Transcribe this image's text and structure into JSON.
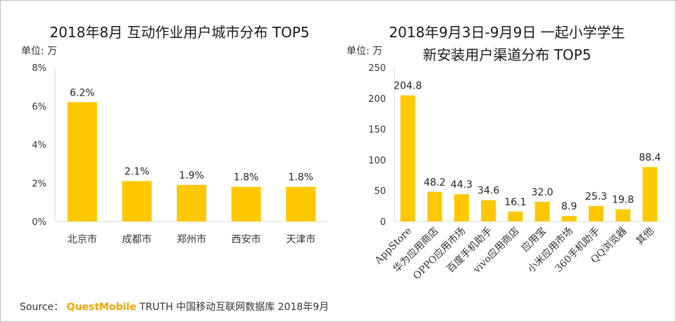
{
  "source": {
    "prefix": "Source：",
    "brand": "QuestMobile",
    "rest": "TRUTH 中国移动互联网数据库 2018年9月"
  },
  "colors": {
    "bar": "#FFC800",
    "axis": "#d9d9d9"
  },
  "chart_data": [
    {
      "type": "bar",
      "title": "2018年8月 互动作业用户城市分布 TOP5",
      "unit_label": "单位: 万",
      "categories": [
        "北京市",
        "成都市",
        "郑州市",
        "西安市",
        "天津市"
      ],
      "values": [
        6.2,
        2.1,
        1.9,
        1.8,
        1.8
      ],
      "value_labels": [
        "6.2%",
        "2.1%",
        "1.9%",
        "1.8%",
        "1.8%"
      ],
      "y_ticks": [
        "0%",
        "2%",
        "4%",
        "6%",
        "8%"
      ],
      "ylim": [
        0,
        8
      ],
      "grid": false
    },
    {
      "type": "bar",
      "title_lines": [
        "2018年9月3日-9月9日 一起小学学生",
        "新安装用户渠道分布 TOP5"
      ],
      "unit_label": "单位: 万",
      "categories": [
        "AppStore",
        "华为应用商店",
        "OPPO应用市场",
        "百度手机助手",
        "vivo应用商店",
        "应用宝",
        "小米应用市场",
        "360手机助手",
        "QQ浏览器",
        "其他"
      ],
      "values": [
        204.8,
        48.2,
        44.3,
        34.6,
        16.1,
        32.0,
        8.9,
        25.3,
        19.8,
        88.4
      ],
      "value_labels": [
        "204.8",
        "48.2",
        "44.3",
        "34.6",
        "16.1",
        "32.0",
        "8.9",
        "25.3",
        "19.8",
        "88.4"
      ],
      "y_ticks": [
        "0",
        "50",
        "100",
        "150",
        "200",
        "250"
      ],
      "ylim": [
        0,
        250
      ],
      "grid": false
    }
  ]
}
